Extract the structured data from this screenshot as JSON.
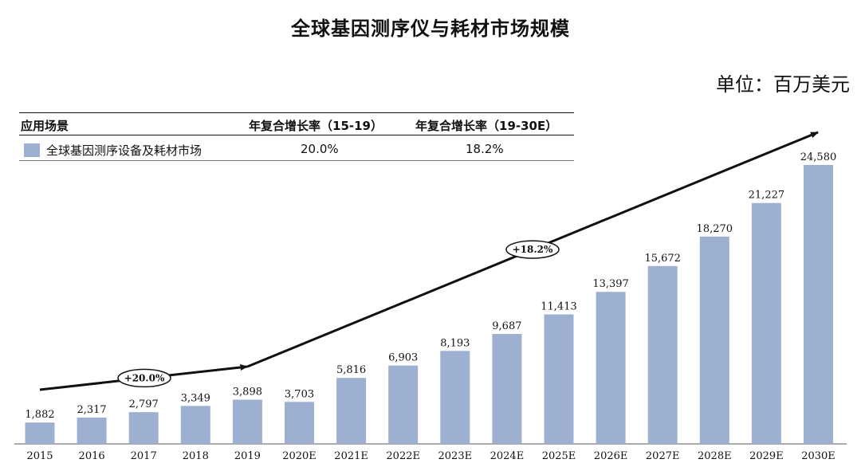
{
  "title": "全球基因测序仪与耗材市场规模",
  "unit": "单位：百万美元",
  "legend_table": {
    "headers": [
      "应用场景",
      "年复合增长率（15-19）",
      "年复合增长率（19-30E）"
    ],
    "row": {
      "label": "全球基因测序设备及耗材市场",
      "cagr_1": "20.0%",
      "cagr_2": "18.2%"
    },
    "swatch_color": "#9db0d2"
  },
  "chart_data": {
    "type": "bar",
    "title": "全球基因测序仪与耗材市场规模",
    "categories": [
      "2015",
      "2016",
      "2017",
      "2018",
      "2019",
      "2020E",
      "2021E",
      "2022E",
      "2023E",
      "2024E",
      "2025E",
      "2026E",
      "2027E",
      "2028E",
      "2029E",
      "2030E"
    ],
    "values": [
      1882,
      2317,
      2797,
      3349,
      3898,
      3703,
      5816,
      6903,
      8193,
      9687,
      11413,
      13397,
      15672,
      18270,
      21227,
      24580
    ],
    "value_labels": [
      "1,882",
      "2,317",
      "2,797",
      "3,349",
      "3,898",
      "3,703",
      "5,816",
      "6,903",
      "8,193",
      "9,687",
      "11,413",
      "13,397",
      "15,672",
      "18,270",
      "21,227",
      "24,580"
    ],
    "ylim": [
      0,
      24580
    ],
    "grid": false,
    "bar_color": "#9db0d2",
    "annotations": [
      {
        "text": "+20.0%",
        "from": "2015",
        "to": "2019"
      },
      {
        "text": "+18.2%",
        "from": "2019",
        "to": "2030E"
      }
    ]
  }
}
